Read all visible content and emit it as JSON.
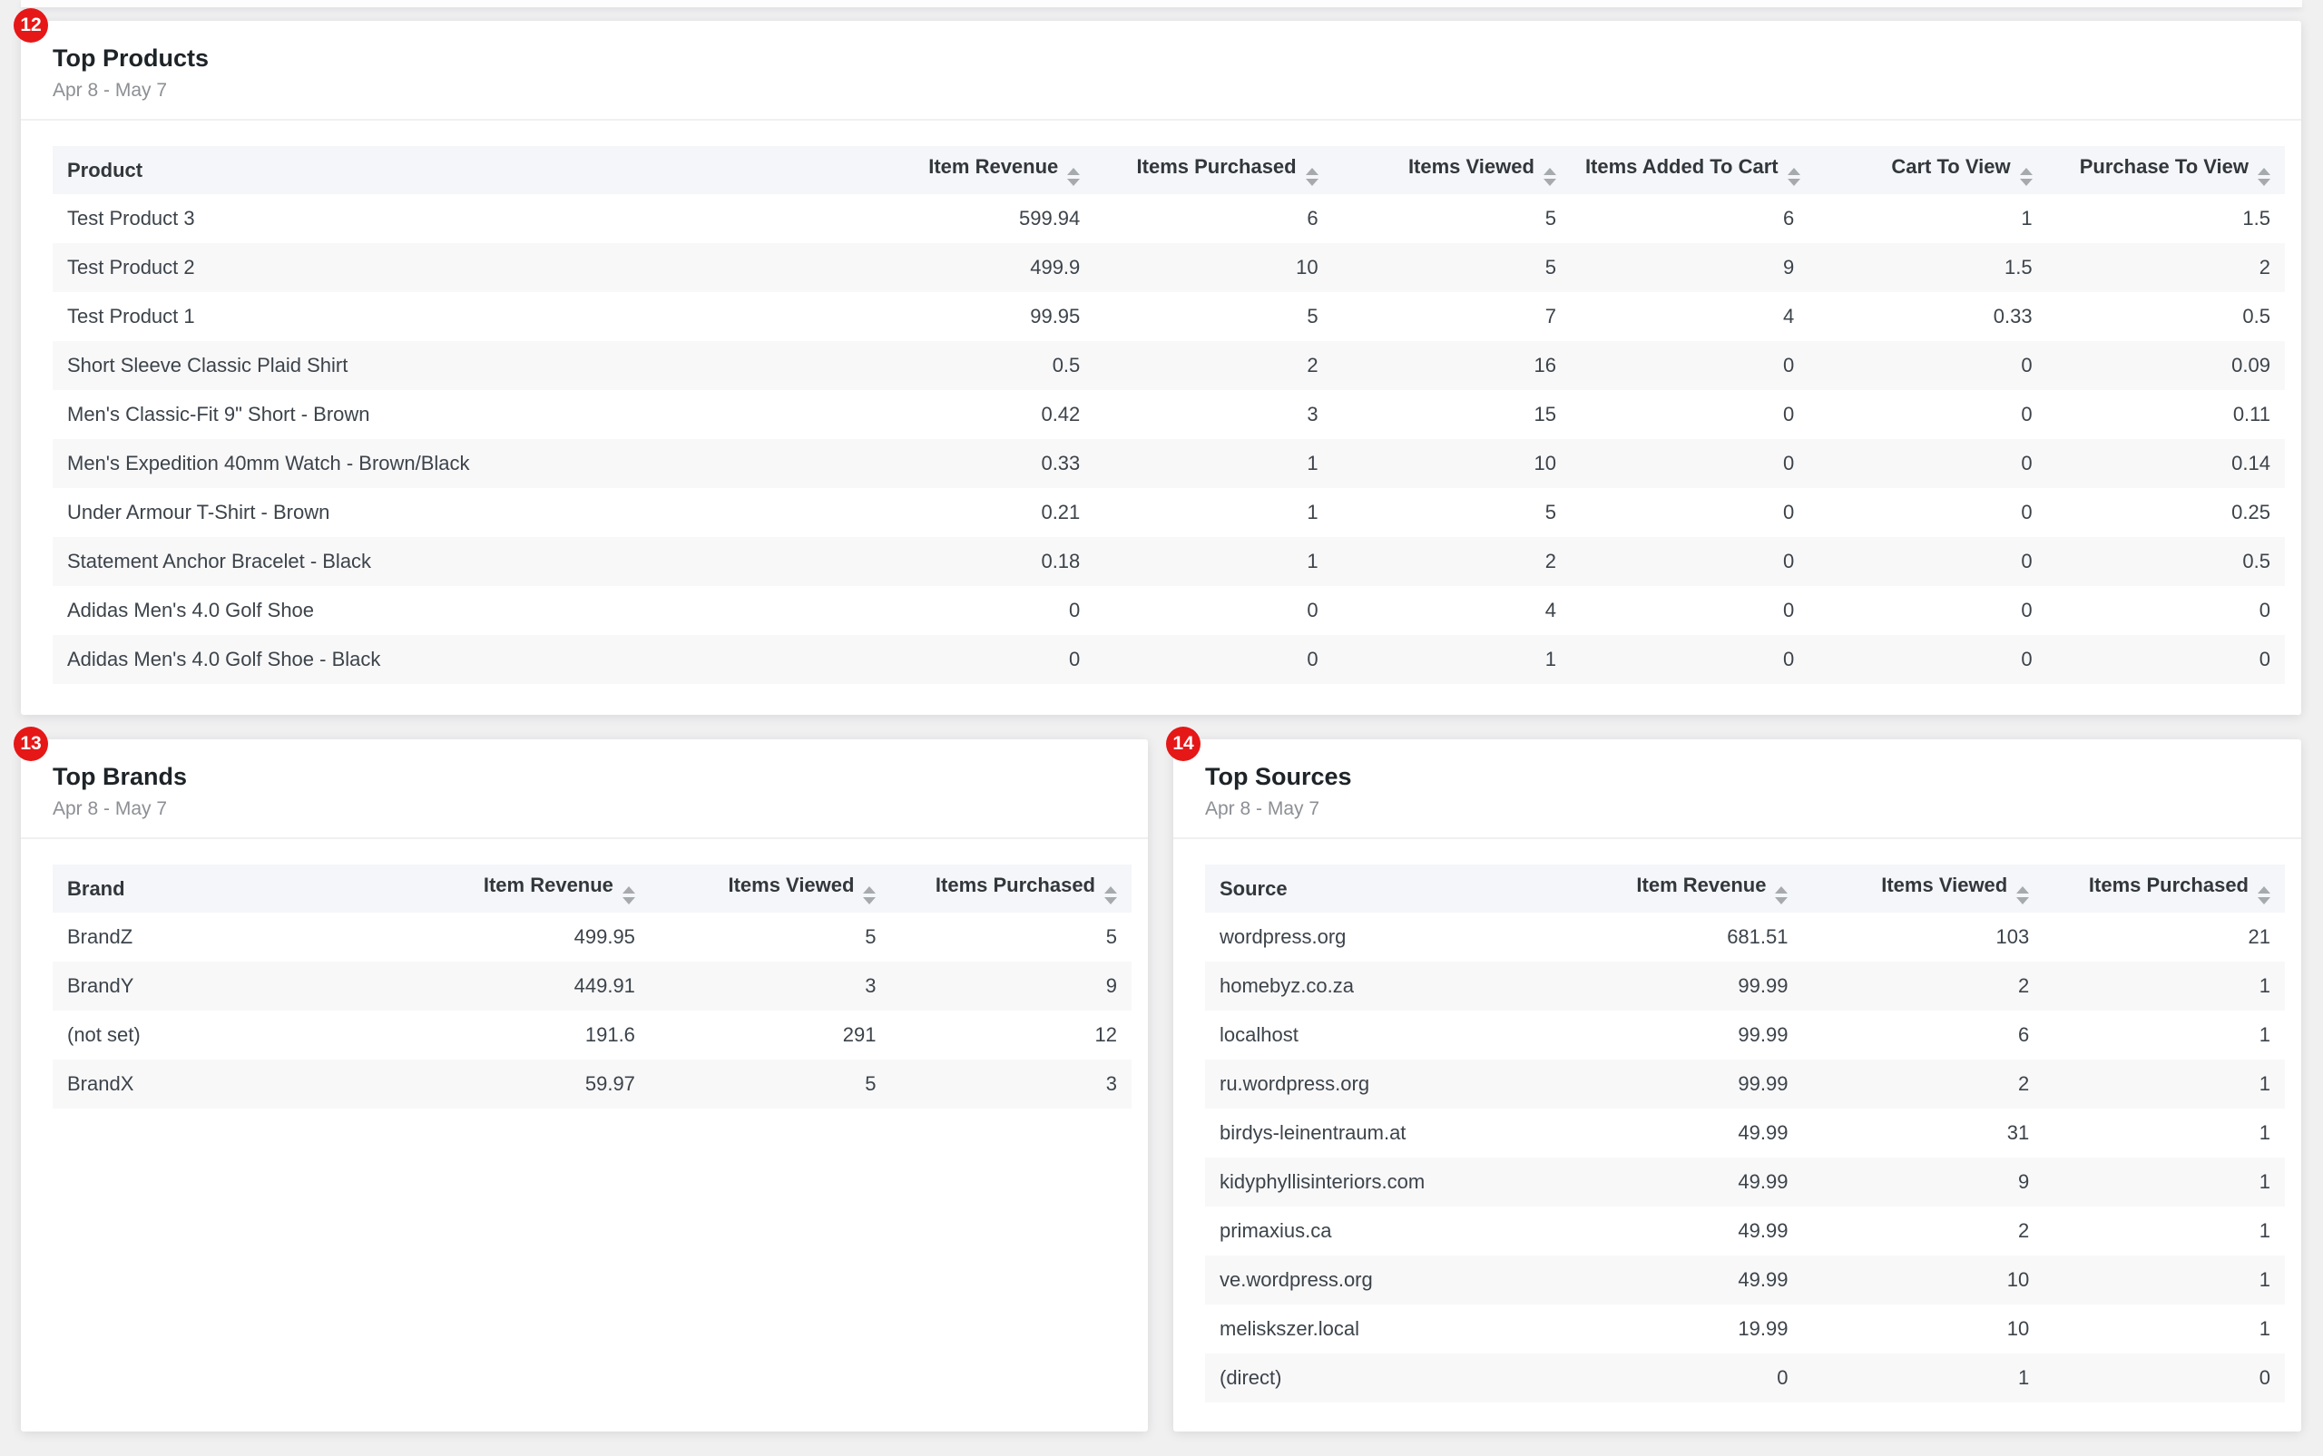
{
  "page": {
    "background_color": "#f0f0f1",
    "card_color": "#ffffff",
    "badge_color": "#e61717",
    "header_row_color": "#f5f6f9",
    "stripe_row_color": "#f8f8f9",
    "sort_icon": "up-down-triangles",
    "sort_icon_color": "#a7aaad"
  },
  "cards": [
    {
      "badge": "12",
      "title": "Top Products",
      "date_range": "Apr 8 - May 7",
      "table": {
        "columns": [
          {
            "label": "Product",
            "sortable": false
          },
          {
            "label": "Item Revenue",
            "sortable": true
          },
          {
            "label": "Items Purchased",
            "sortable": true
          },
          {
            "label": "Items Viewed",
            "sortable": true
          },
          {
            "label": "Items Added To Cart",
            "sortable": true
          },
          {
            "label": "Cart To View",
            "sortable": true
          },
          {
            "label": "Purchase To View",
            "sortable": true
          }
        ],
        "rows": [
          [
            "Test Product 3",
            "599.94",
            "6",
            "5",
            "6",
            "1",
            "1.5"
          ],
          [
            "Test Product 2",
            "499.9",
            "10",
            "5",
            "9",
            "1.5",
            "2"
          ],
          [
            "Test Product 1",
            "99.95",
            "5",
            "7",
            "4",
            "0.33",
            "0.5"
          ],
          [
            "Short Sleeve Classic Plaid Shirt",
            "0.5",
            "2",
            "16",
            "0",
            "0",
            "0.09"
          ],
          [
            "Men's Classic-Fit 9\" Short - Brown",
            "0.42",
            "3",
            "15",
            "0",
            "0",
            "0.11"
          ],
          [
            "Men's Expedition 40mm Watch - Brown/Black",
            "0.33",
            "1",
            "10",
            "0",
            "0",
            "0.14"
          ],
          [
            "Under Armour T-Shirt - Brown",
            "0.21",
            "1",
            "5",
            "0",
            "0",
            "0.25"
          ],
          [
            "Statement Anchor Bracelet - Black",
            "0.18",
            "1",
            "2",
            "0",
            "0",
            "0.5"
          ],
          [
            "Adidas Men's 4.0 Golf Shoe",
            "0",
            "0",
            "4",
            "0",
            "0",
            "0"
          ],
          [
            "Adidas Men's 4.0 Golf Shoe - Black",
            "0",
            "0",
            "1",
            "0",
            "0",
            "0"
          ]
        ]
      }
    },
    {
      "badge": "13",
      "title": "Top Brands",
      "date_range": "Apr 8 - May 7",
      "table": {
        "columns": [
          {
            "label": "Brand",
            "sortable": false
          },
          {
            "label": "Item Revenue",
            "sortable": true
          },
          {
            "label": "Items Viewed",
            "sortable": true
          },
          {
            "label": "Items Purchased",
            "sortable": true
          }
        ],
        "rows": [
          [
            "BrandZ",
            "499.95",
            "5",
            "5"
          ],
          [
            "BrandY",
            "449.91",
            "3",
            "9"
          ],
          [
            "(not set)",
            "191.6",
            "291",
            "12"
          ],
          [
            "BrandX",
            "59.97",
            "5",
            "3"
          ]
        ]
      }
    },
    {
      "badge": "14",
      "title": "Top Sources",
      "date_range": "Apr 8 - May 7",
      "table": {
        "columns": [
          {
            "label": "Source",
            "sortable": false
          },
          {
            "label": "Item Revenue",
            "sortable": true
          },
          {
            "label": "Items Viewed",
            "sortable": true
          },
          {
            "label": "Items Purchased",
            "sortable": true
          }
        ],
        "rows": [
          [
            "wordpress.org",
            "681.51",
            "103",
            "21"
          ],
          [
            "homebyz.co.za",
            "99.99",
            "2",
            "1"
          ],
          [
            "localhost",
            "99.99",
            "6",
            "1"
          ],
          [
            "ru.wordpress.org",
            "99.99",
            "2",
            "1"
          ],
          [
            "birdys-leinentraum.at",
            "49.99",
            "31",
            "1"
          ],
          [
            "kidyphyllisinteriors.com",
            "49.99",
            "9",
            "1"
          ],
          [
            "primaxius.ca",
            "49.99",
            "2",
            "1"
          ],
          [
            "ve.wordpress.org",
            "49.99",
            "10",
            "1"
          ],
          [
            "meliskszer.local",
            "19.99",
            "10",
            "1"
          ],
          [
            "(direct)",
            "0",
            "1",
            "0"
          ]
        ]
      }
    }
  ]
}
